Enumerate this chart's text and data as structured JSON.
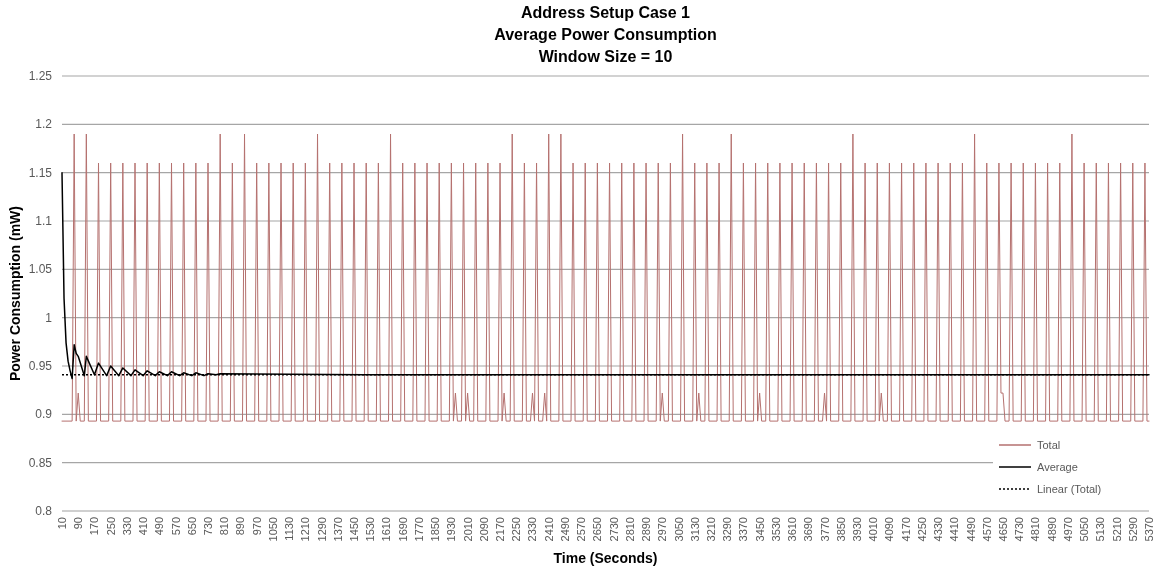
{
  "chart_data": {
    "type": "line",
    "title": "Address Setup Case 1\nAverage Power Consumption\nWindow Size = 10",
    "xlabel": "Time (Seconds)",
    "ylabel": "Power Consumption (mW)",
    "xlim": [
      10,
      5370
    ],
    "ylim": [
      0.8,
      1.25
    ],
    "xticks": [
      10,
      90,
      170,
      250,
      330,
      410,
      490,
      570,
      650,
      730,
      810,
      890,
      970,
      1050,
      1130,
      1210,
      1290,
      1370,
      1450,
      1530,
      1610,
      1690,
      1770,
      1850,
      1930,
      2010,
      2090,
      2170,
      2250,
      2330,
      2410,
      2490,
      2570,
      2650,
      2730,
      2810,
      2890,
      2970,
      3050,
      3130,
      3210,
      3290,
      3370,
      3450,
      3530,
      3610,
      3690,
      3770,
      3850,
      3930,
      4010,
      4090,
      4170,
      4250,
      4330,
      4410,
      4490,
      4570,
      4650,
      4730,
      4810,
      4890,
      4970,
      5050,
      5130,
      5210,
      5290,
      5370
    ],
    "yticks": [
      0.8,
      0.85,
      0.9,
      0.95,
      1,
      1.05,
      1.1,
      1.15,
      1.2,
      1.25
    ],
    "grid": "y",
    "legend": "bottom right",
    "series": [
      {
        "name": "Total",
        "color": "#b5716f",
        "x": [
          10,
          60,
          70,
          80,
          90,
          100,
          120,
          130,
          140,
          180,
          190,
          200,
          240,
          250,
          260,
          300,
          310,
          320,
          360,
          370,
          380,
          420,
          430,
          440,
          480,
          490,
          500,
          540,
          550,
          560,
          600,
          610,
          620,
          660,
          670,
          680,
          720,
          730,
          740,
          780,
          790,
          800,
          840,
          850,
          860,
          900,
          910,
          920,
          960,
          970,
          980,
          1020,
          1030,
          1040,
          1080,
          1090,
          1100,
          1140,
          1150,
          1160,
          1200,
          1210,
          1220,
          1260,
          1270,
          1280,
          1320,
          1330,
          1340,
          1380,
          1390,
          1400,
          1440,
          1450,
          1460,
          1500,
          1510,
          1520,
          1560,
          1570,
          1580,
          1620,
          1630,
          1640,
          1680,
          1690,
          1700,
          1740,
          1750,
          1760,
          1800,
          1810,
          1820,
          1860,
          1870,
          1880,
          1920,
          1930,
          1940,
          1950,
          1960,
          1980,
          1990,
          2000,
          2010,
          2020,
          2040,
          2050,
          2060,
          2100,
          2110,
          2120,
          2160,
          2170,
          2180,
          2190,
          2200,
          2220,
          2230,
          2240,
          2280,
          2290,
          2300,
          2320,
          2330,
          2340,
          2350,
          2360,
          2380,
          2390,
          2400,
          2410,
          2420,
          2460,
          2470,
          2480,
          2520,
          2530,
          2540,
          2580,
          2590,
          2600,
          2640,
          2650,
          2660,
          2700,
          2710,
          2720,
          2760,
          2770,
          2780,
          2820,
          2830,
          2840,
          2880,
          2890,
          2900,
          2940,
          2950,
          2960,
          2970,
          2980,
          3000,
          3010,
          3020,
          3060,
          3070,
          3080,
          3120,
          3130,
          3140,
          3150,
          3160,
          3180,
          3190,
          3200,
          3240,
          3250,
          3260,
          3300,
          3310,
          3320,
          3360,
          3370,
          3380,
          3420,
          3430,
          3440,
          3450,
          3460,
          3480,
          3490,
          3500,
          3540,
          3550,
          3560,
          3600,
          3610,
          3620,
          3660,
          3670,
          3680,
          3720,
          3730,
          3740,
          3760,
          3770,
          3780,
          3790,
          3800,
          3840,
          3850,
          3860,
          3900,
          3910,
          3920,
          3960,
          3970,
          3980,
          4020,
          4030,
          4040,
          4050,
          4060,
          4080,
          4090,
          4100,
          4140,
          4150,
          4160,
          4200,
          4210,
          4220,
          4260,
          4270,
          4280,
          4320,
          4330,
          4340,
          4380,
          4390,
          4400,
          4440,
          4450,
          4460,
          4500,
          4510,
          4520,
          4560,
          4570,
          4580,
          4620,
          4630,
          4640,
          4650,
          4660,
          4680,
          4690,
          4700,
          4740,
          4750,
          4760,
          4800,
          4810,
          4820,
          4860,
          4870,
          4880,
          4920,
          4930,
          4940,
          4980,
          4990,
          5000,
          5040,
          5050,
          5060,
          5100,
          5110,
          5120,
          5160,
          5170,
          5180,
          5220,
          5230,
          5240,
          5280,
          5290,
          5300,
          5340,
          5350,
          5360,
          5370
        ],
        "values": [
          0.893,
          0.893,
          1.19,
          0.893,
          0.922,
          0.893,
          0.893,
          1.19,
          0.893,
          0.893,
          1.16,
          0.893,
          0.893,
          1.16,
          0.893,
          0.893,
          1.16,
          0.893,
          0.893,
          1.16,
          0.893,
          0.893,
          1.16,
          0.893,
          0.893,
          1.16,
          0.893,
          0.893,
          1.16,
          0.893,
          0.893,
          1.16,
          0.893,
          0.893,
          1.16,
          0.893,
          0.893,
          1.16,
          0.893,
          0.893,
          1.19,
          0.893,
          0.893,
          1.16,
          0.893,
          0.893,
          1.19,
          0.893,
          0.893,
          1.16,
          0.893,
          0.893,
          1.16,
          0.893,
          0.893,
          1.16,
          0.893,
          0.893,
          1.16,
          0.893,
          0.893,
          1.16,
          0.893,
          0.893,
          1.19,
          0.893,
          0.893,
          1.16,
          0.893,
          0.893,
          1.16,
          0.893,
          0.893,
          1.16,
          0.893,
          0.893,
          1.16,
          0.893,
          0.893,
          1.16,
          0.893,
          0.893,
          1.19,
          0.893,
          0.893,
          1.16,
          0.893,
          0.893,
          1.16,
          0.893,
          0.893,
          1.16,
          0.893,
          0.893,
          1.16,
          0.893,
          0.893,
          1.16,
          0.893,
          0.922,
          0.893,
          0.893,
          1.16,
          0.893,
          0.922,
          0.893,
          0.893,
          1.16,
          0.893,
          0.893,
          1.16,
          0.893,
          0.893,
          1.16,
          0.893,
          0.922,
          0.893,
          0.893,
          1.19,
          0.893,
          0.893,
          1.16,
          0.893,
          0.893,
          0.922,
          0.893,
          1.16,
          0.893,
          0.893,
          0.922,
          0.893,
          1.19,
          0.893,
          0.893,
          1.19,
          0.893,
          0.893,
          1.16,
          0.893,
          0.893,
          1.16,
          0.893,
          0.893,
          1.16,
          0.893,
          0.893,
          1.16,
          0.893,
          0.893,
          1.16,
          0.893,
          0.893,
          1.16,
          0.893,
          0.893,
          1.16,
          0.893,
          0.893,
          1.16,
          0.893,
          0.922,
          0.893,
          0.893,
          1.16,
          0.893,
          0.893,
          1.19,
          0.893,
          0.893,
          1.16,
          0.893,
          0.922,
          0.893,
          0.893,
          1.16,
          0.893,
          0.893,
          1.16,
          0.893,
          0.893,
          1.19,
          0.893,
          0.893,
          1.16,
          0.893,
          0.893,
          1.16,
          0.893,
          0.922,
          0.893,
          0.893,
          1.16,
          0.893,
          0.893,
          1.16,
          0.893,
          0.893,
          1.16,
          0.893,
          0.893,
          1.16,
          0.893,
          0.893,
          1.16,
          0.893,
          0.893,
          0.922,
          0.893,
          1.16,
          0.893,
          0.893,
          1.16,
          0.893,
          0.893,
          1.19,
          0.893,
          0.893,
          1.16,
          0.893,
          0.893,
          1.16,
          0.893,
          0.922,
          0.893,
          0.893,
          1.16,
          0.893,
          0.893,
          1.16,
          0.893,
          0.893,
          1.16,
          0.893,
          0.893,
          1.16,
          0.893,
          0.893,
          1.16,
          0.893,
          0.893,
          1.16,
          0.893,
          0.893,
          1.16,
          0.893,
          0.893,
          1.19,
          0.893,
          0.893,
          1.16,
          0.893,
          0.893,
          1.16,
          0.922,
          0.922,
          0.893,
          0.893,
          1.16,
          0.893,
          0.893,
          1.16,
          0.893,
          0.893,
          1.16,
          0.893,
          0.893,
          1.16,
          0.893,
          0.893,
          1.16,
          0.893,
          0.893,
          1.19,
          0.893,
          0.893,
          1.16,
          0.893,
          0.893,
          1.16,
          0.893,
          0.893,
          1.16,
          0.893,
          0.893,
          1.16,
          0.893,
          0.893,
          1.16,
          0.893,
          0.893,
          1.16,
          0.893,
          0.893
        ]
      },
      {
        "name": "Average",
        "color": "#000000",
        "x": [
          10,
          20,
          30,
          40,
          50,
          60,
          70,
          80,
          90,
          120,
          130,
          170,
          190,
          230,
          250,
          290,
          310,
          350,
          370,
          410,
          430,
          470,
          490,
          530,
          550,
          590,
          610,
          650,
          670,
          710,
          730,
          770,
          790,
          1500,
          2500,
          3500,
          4500,
          5370
        ],
        "values": [
          1.15,
          1.02,
          0.974,
          0.955,
          0.945,
          0.937,
          0.972,
          0.963,
          0.96,
          0.94,
          0.96,
          0.941,
          0.953,
          0.94,
          0.95,
          0.94,
          0.948,
          0.94,
          0.946,
          0.94,
          0.945,
          0.94,
          0.944,
          0.94,
          0.944,
          0.94,
          0.943,
          0.94,
          0.943,
          0.94,
          0.942,
          0.941,
          0.942,
          0.941,
          0.941,
          0.941,
          0.941,
          0.941
        ]
      },
      {
        "name": "Linear (Total)",
        "color": "#000000",
        "line_style": "dotted",
        "x": [
          10,
          5370
        ],
        "values": [
          0.941,
          0.941
        ]
      }
    ]
  }
}
